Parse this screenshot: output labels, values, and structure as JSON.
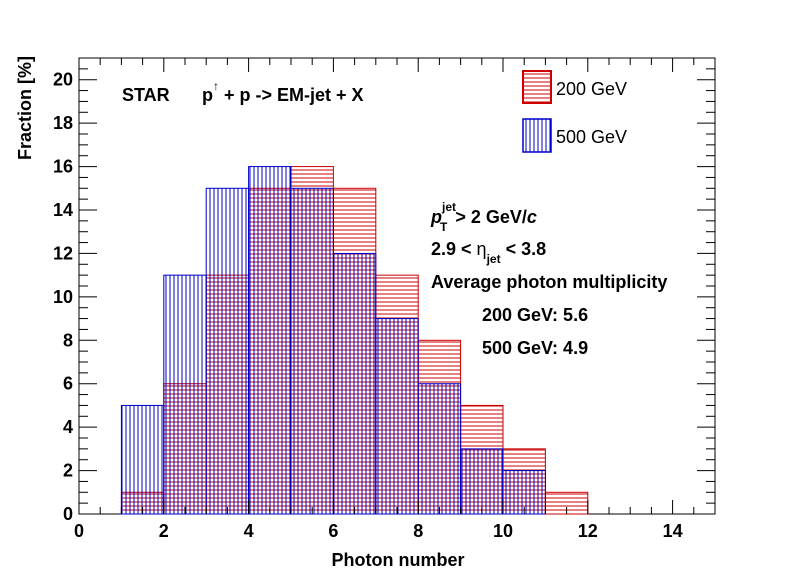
{
  "chart_data": {
    "type": "bar",
    "title": "STAR",
    "reaction": {
      "p": "p",
      "arrow": "↑",
      "rest": " + p -> EM-jet + X"
    },
    "xlabel": "Photon number",
    "ylabel": "Fraction [%]",
    "xlim": [
      0,
      15
    ],
    "ylim": [
      0,
      21
    ],
    "x_ticks": [
      0,
      2,
      4,
      6,
      8,
      10,
      12,
      14
    ],
    "y_ticks": [
      0,
      2,
      4,
      6,
      8,
      10,
      12,
      14,
      16,
      18,
      20
    ],
    "bin_edges": [
      1,
      2,
      3,
      4,
      5,
      6,
      7,
      8,
      9,
      10,
      11,
      12
    ],
    "series": [
      {
        "name": "200 GeV",
        "color": "#cc0000",
        "hatch": "horizontal",
        "values": [
          1,
          6,
          11,
          15,
          16,
          15,
          11,
          8,
          5,
          3,
          1
        ]
      },
      {
        "name": "500 GeV",
        "color": "#0000cc",
        "hatch": "vertical",
        "values": [
          5,
          11,
          15,
          16,
          15,
          12,
          9,
          6,
          3,
          2,
          0
        ]
      }
    ],
    "annotations": {
      "pt_p": "p",
      "pt_sup": "jet",
      "pt_sub": "T",
      "pt_rest": "> 2 GeV/",
      "pt_c": "c",
      "eta_low": "2.9 < ",
      "eta_sym": "η",
      "eta_sub": "jet",
      "eta_high": " < 3.8",
      "avg_title": "Average photon multiplicity",
      "avg_200": "200 GeV: 5.6",
      "avg_500": "500 GeV: 4.9"
    }
  }
}
